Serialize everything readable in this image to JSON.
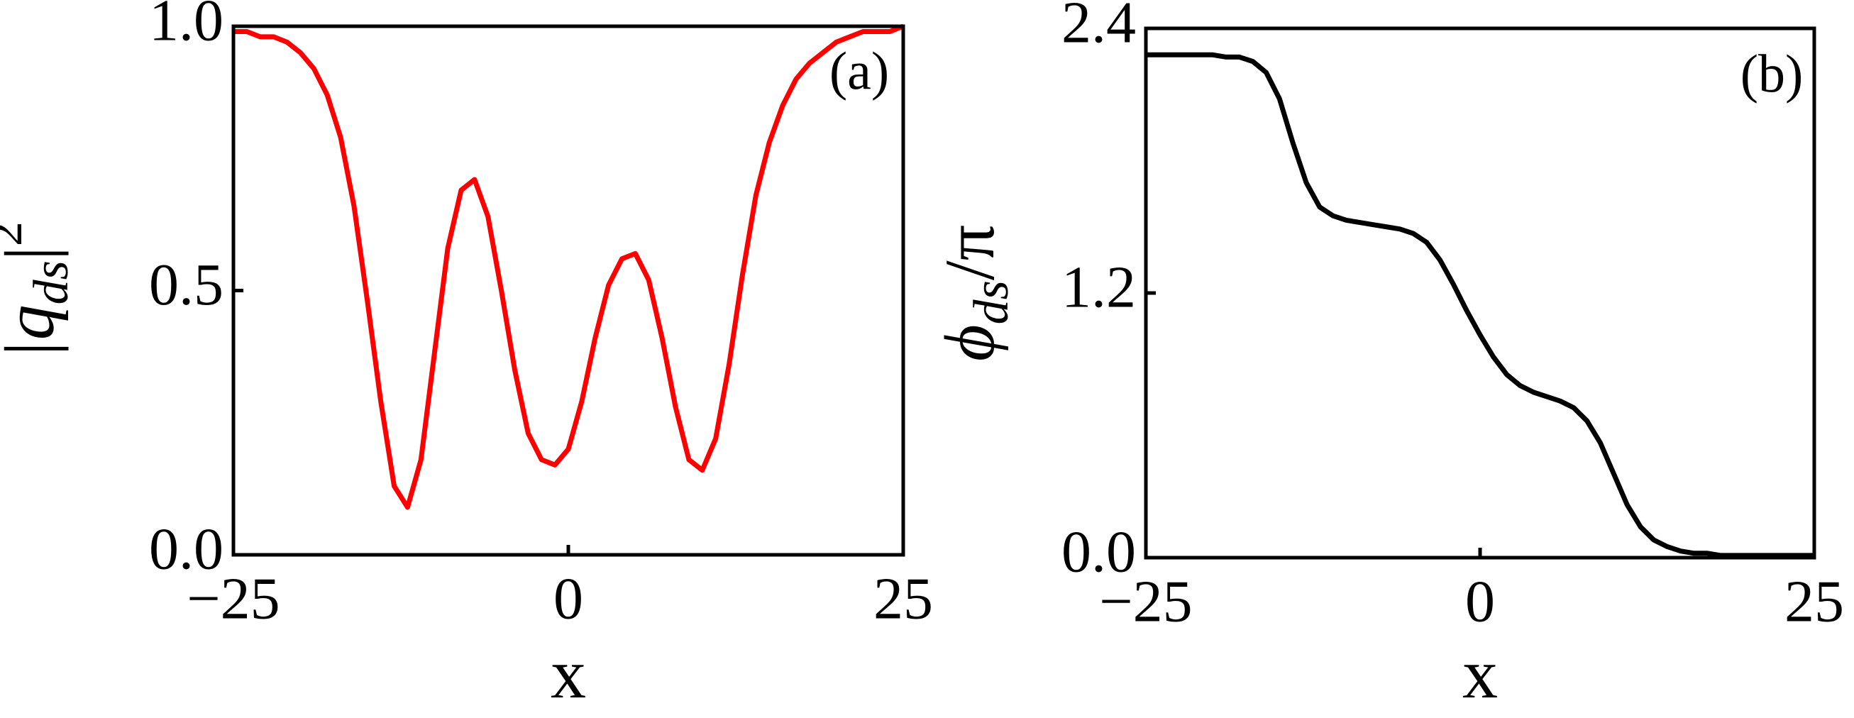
{
  "chart_data": [
    {
      "type": "line",
      "panel_label": "(a)",
      "xlabel": "x",
      "ylabel": [
        "|q",
        "ds",
        "|",
        "2"
      ],
      "x": [
        -25,
        -24,
        -23,
        -22,
        -21,
        -20,
        -19,
        -18,
        -17,
        -16,
        -15,
        -14,
        -13,
        -12,
        -11,
        -10,
        -9,
        -8,
        -7,
        -6,
        -5,
        -4,
        -3,
        -2,
        -1,
        0,
        1,
        2,
        3,
        4,
        5,
        6,
        7,
        8,
        9,
        10,
        11,
        12,
        13,
        14,
        15,
        16,
        17,
        18,
        19,
        20,
        21,
        22,
        23,
        24,
        25
      ],
      "values": [
        0.99,
        0.99,
        0.98,
        0.98,
        0.97,
        0.95,
        0.92,
        0.87,
        0.79,
        0.66,
        0.48,
        0.29,
        0.13,
        0.09,
        0.18,
        0.38,
        0.58,
        0.69,
        0.71,
        0.64,
        0.5,
        0.35,
        0.23,
        0.18,
        0.17,
        0.2,
        0.29,
        0.41,
        0.51,
        0.56,
        0.57,
        0.52,
        0.41,
        0.28,
        0.18,
        0.16,
        0.22,
        0.36,
        0.53,
        0.68,
        0.78,
        0.85,
        0.9,
        0.93,
        0.95,
        0.97,
        0.98,
        0.99,
        0.99,
        0.99,
        1.0
      ],
      "color": "#ff0000",
      "xlim": [
        -25,
        25
      ],
      "xticks": [
        {
          "value": -25,
          "label": "−25"
        },
        0,
        25
      ],
      "ylim": [
        0,
        1
      ],
      "yticks": [
        {
          "value": 0,
          "label": "0.0"
        },
        0.5,
        {
          "value": 1,
          "label": "1.0"
        }
      ]
    },
    {
      "type": "line",
      "panel_label": "(b)",
      "xlabel": "x",
      "ylabel": [
        "ϕ",
        "ds",
        "/π"
      ],
      "x": [
        -25,
        -24,
        -23,
        -22,
        -21,
        -20,
        -19,
        -18,
        -17,
        -16,
        -15,
        -14,
        -13,
        -12,
        -11,
        -10,
        -9,
        -8,
        -7,
        -6,
        -5,
        -4,
        -3,
        -2,
        -1,
        0,
        1,
        2,
        3,
        4,
        5,
        6,
        7,
        8,
        9,
        10,
        11,
        12,
        13,
        14,
        15,
        16,
        17,
        18,
        19,
        20,
        21,
        22,
        23,
        24,
        25
      ],
      "values": [
        2.28,
        2.28,
        2.28,
        2.28,
        2.28,
        2.28,
        2.27,
        2.27,
        2.25,
        2.2,
        2.08,
        1.88,
        1.7,
        1.59,
        1.55,
        1.53,
        1.52,
        1.51,
        1.5,
        1.49,
        1.47,
        1.43,
        1.35,
        1.24,
        1.12,
        1.01,
        0.91,
        0.83,
        0.78,
        0.75,
        0.73,
        0.71,
        0.68,
        0.62,
        0.52,
        0.38,
        0.24,
        0.14,
        0.08,
        0.05,
        0.03,
        0.02,
        0.02,
        0.01,
        0.01,
        0.01,
        0.01,
        0.01,
        0.01,
        0.01,
        0.01
      ],
      "color": "#000000",
      "xlim": [
        -25,
        25
      ],
      "xticks": [
        {
          "value": -25,
          "label": "−25"
        },
        0,
        25
      ],
      "ylim": [
        0,
        2.4
      ],
      "yticks": [
        {
          "value": 0,
          "label": "0.0"
        },
        1.2,
        2.4
      ]
    }
  ]
}
